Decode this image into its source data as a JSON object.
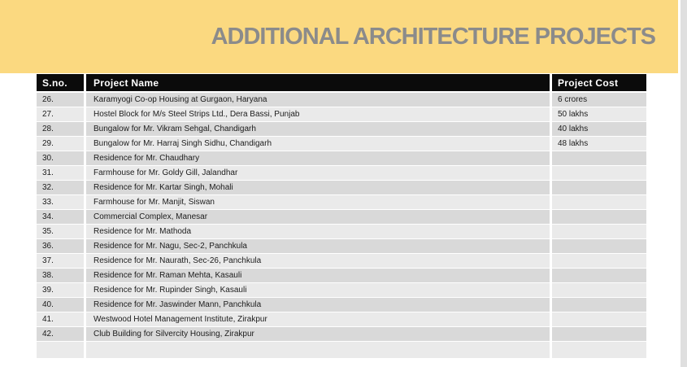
{
  "page": {
    "title": "ADDITIONAL ARCHITECTURE PROJECTS"
  },
  "colors": {
    "banner_yellow": "#fbd980",
    "title_gray": "#8b8b8b",
    "header_black": "#0b0b0b",
    "row_dark": "#d9d9d9",
    "row_light": "#eaeaea",
    "edge_gray": "#dfdfdf"
  },
  "table": {
    "columns": [
      "S.no.",
      "Project Name",
      "Project Cost"
    ],
    "rows": [
      {
        "sno": "26.",
        "name": "Karamyogi Co-op Housing at Gurgaon, Haryana",
        "cost": "6 crores"
      },
      {
        "sno": "27.",
        "name": "Hostel Block for M/s Steel Strips Ltd., Dera Bassi, Punjab",
        "cost": "50 lakhs"
      },
      {
        "sno": "28.",
        "name": "Bungalow for Mr. Vikram Sehgal, Chandigarh",
        "cost": "40 lakhs"
      },
      {
        "sno": "29.",
        "name": "Bungalow for Mr. Harraj Singh Sidhu, Chandigarh",
        "cost": "48 lakhs"
      },
      {
        "sno": "30.",
        "name": "Residence for Mr. Chaudhary",
        "cost": ""
      },
      {
        "sno": "31.",
        "name": "Farmhouse for Mr. Goldy Gill, Jalandhar",
        "cost": ""
      },
      {
        "sno": "32.",
        "name": "Residence for Mr. Kartar Singh, Mohali",
        "cost": ""
      },
      {
        "sno": "33.",
        "name": "Farmhouse for Mr. Manjit, Siswan",
        "cost": ""
      },
      {
        "sno": "34.",
        "name": "Commercial Complex, Manesar",
        "cost": ""
      },
      {
        "sno": "35.",
        "name": "Residence for Mr. Mathoda",
        "cost": ""
      },
      {
        "sno": "36.",
        "name": "Residence for Mr. Nagu, Sec-2, Panchkula",
        "cost": ""
      },
      {
        "sno": "37.",
        "name": "Residence for Mr. Naurath, Sec-26, Panchkula",
        "cost": ""
      },
      {
        "sno": "38.",
        "name": "Residence for Mr. Raman Mehta, Kasauli",
        "cost": ""
      },
      {
        "sno": "39.",
        "name": "Residence for Mr. Rupinder Singh, Kasauli",
        "cost": ""
      },
      {
        "sno": "40.",
        "name": "Residence for Mr. Jaswinder Mann, Panchkula",
        "cost": ""
      },
      {
        "sno": "41.",
        "name": "Westwood Hotel Management Institute, Zirakpur",
        "cost": ""
      },
      {
        "sno": "42.",
        "name": "Club Building for Silvercity Housing, Zirakpur",
        "cost": ""
      },
      {
        "sno": "",
        "name": "",
        "cost": ""
      }
    ]
  }
}
